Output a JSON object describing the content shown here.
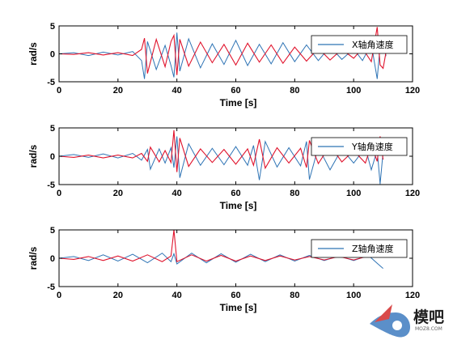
{
  "chart_data": [
    {
      "type": "line",
      "xlabel": "Time [s]",
      "ylabel": "rad/s",
      "xlim": [
        0,
        120
      ],
      "ylim": [
        -5,
        5
      ],
      "xticks": [
        0,
        20,
        40,
        60,
        80,
        100,
        120
      ],
      "yticks": [
        -5,
        0,
        5
      ],
      "grid": false,
      "legend_position": "top-right",
      "series": [
        {
          "name": "X轴角速度",
          "color": "#2f74b5",
          "x": [
            0,
            5,
            10,
            15,
            20,
            25,
            28,
            29,
            30,
            33,
            36,
            38,
            39,
            40,
            41,
            44,
            48,
            52,
            56,
            60,
            64,
            68,
            72,
            76,
            80,
            84,
            88,
            92,
            96,
            100,
            103,
            106,
            108,
            109,
            110,
            111
          ],
          "y": [
            0,
            0.2,
            -0.3,
            0.3,
            -0.2,
            0.4,
            -1.2,
            -4.5,
            2.2,
            -2.8,
            1.5,
            -2.1,
            -4.2,
            3.8,
            -3.1,
            2.7,
            -2.5,
            1.8,
            -1.9,
            2.4,
            -2.1,
            1.7,
            -1.8,
            2.0,
            -1.4,
            1.6,
            -1.2,
            1.3,
            -1.0,
            0.9,
            -1.2,
            1.8,
            -4.5,
            1.5,
            2.2,
            -0.4
          ]
        },
        {
          "name": "",
          "color": "#e0142d",
          "x": [
            0,
            5,
            10,
            15,
            20,
            25,
            28,
            29,
            30,
            33,
            36,
            38,
            39,
            40,
            41,
            44,
            48,
            52,
            56,
            60,
            64,
            68,
            72,
            76,
            80,
            84,
            88,
            92,
            96,
            100,
            103,
            106,
            108,
            109,
            110,
            111
          ],
          "y": [
            0,
            -0.1,
            0.2,
            -0.2,
            0.2,
            -0.3,
            0.8,
            2.8,
            -3.5,
            2.6,
            -2.3,
            2.2,
            3.3,
            -3.8,
            2.6,
            -2.2,
            2.1,
            -1.6,
            1.7,
            -2.0,
            1.9,
            -1.5,
            1.6,
            -1.7,
            1.2,
            -1.3,
            1.0,
            -1.1,
            0.8,
            -0.8,
            1.0,
            -1.4,
            4.8,
            -2.0,
            -2.6,
            0.3
          ]
        }
      ]
    },
    {
      "type": "line",
      "xlabel": "Time [s]",
      "ylabel": "rad/s",
      "xlim": [
        0,
        120
      ],
      "ylim": [
        -5,
        5
      ],
      "xticks": [
        0,
        20,
        40,
        60,
        80,
        100,
        120
      ],
      "yticks": [
        -5,
        0,
        5
      ],
      "grid": false,
      "legend_position": "top-right",
      "series": [
        {
          "name": "Y轴角速度",
          "color": "#2f74b5",
          "x": [
            0,
            5,
            10,
            15,
            20,
            25,
            28,
            30,
            31,
            34,
            36,
            38,
            39,
            40,
            41,
            44,
            48,
            52,
            56,
            60,
            64,
            66,
            68,
            70,
            74,
            78,
            82,
            84,
            85,
            88,
            92,
            96,
            100,
            104,
            106,
            108,
            109,
            110
          ],
          "y": [
            0,
            0.3,
            -0.2,
            0.4,
            -0.3,
            0.5,
            -0.7,
            1.2,
            -2.3,
            1.3,
            -1.2,
            1.5,
            -2.0,
            3.5,
            -3.8,
            2.2,
            -1.6,
            1.4,
            -1.5,
            1.7,
            -1.6,
            1.9,
            -4.2,
            2.6,
            -1.9,
            1.5,
            -1.7,
            2.6,
            -4.1,
            1.6,
            -2.4,
            1.3,
            -1.2,
            1.5,
            -2.4,
            1.1,
            -4.9,
            0.8
          ]
        },
        {
          "name": "",
          "color": "#e0142d",
          "x": [
            0,
            5,
            10,
            15,
            20,
            25,
            28,
            30,
            31,
            34,
            36,
            38,
            39,
            40,
            41,
            44,
            48,
            52,
            56,
            60,
            64,
            66,
            68,
            70,
            74,
            78,
            82,
            84,
            85,
            88,
            92,
            96,
            100,
            104,
            106,
            108,
            109,
            110
          ],
          "y": [
            0,
            -0.2,
            0.2,
            -0.3,
            0.2,
            -0.3,
            0.5,
            -0.9,
            1.6,
            -1.0,
            1.0,
            -1.1,
            4.6,
            -2.8,
            3.2,
            -1.8,
            1.3,
            -1.1,
            1.2,
            -1.4,
            1.3,
            -1.6,
            3.0,
            -2.1,
            1.5,
            -1.2,
            1.4,
            -2.0,
            2.8,
            -1.3,
            1.9,
            -1.0,
            1.0,
            -1.2,
            2.0,
            -0.9,
            3.5,
            -0.6
          ]
        }
      ]
    },
    {
      "type": "line",
      "xlabel": "Time [s]",
      "ylabel": "rad/s",
      "xlim": [
        0,
        120
      ],
      "ylim": [
        -5,
        5
      ],
      "xticks": [
        0,
        20,
        40,
        60,
        80,
        100,
        120
      ],
      "yticks": [
        -5,
        0,
        5
      ],
      "grid": false,
      "legend_position": "top-right",
      "series": [
        {
          "name": "Z轴角速度",
          "color": "#2f74b5",
          "x": [
            0,
            5,
            10,
            15,
            20,
            25,
            30,
            35,
            38,
            39,
            40,
            45,
            50,
            55,
            60,
            65,
            70,
            75,
            80,
            85,
            90,
            95,
            100,
            105,
            108,
            110
          ],
          "y": [
            0,
            0.3,
            -0.4,
            0.6,
            -0.5,
            0.7,
            -0.8,
            0.9,
            -0.6,
            0.8,
            -1.0,
            0.9,
            -0.8,
            0.8,
            -0.7,
            0.7,
            -0.6,
            0.6,
            -0.5,
            0.5,
            -0.4,
            0.4,
            -0.4,
            0.5,
            -0.9,
            -1.8
          ]
        },
        {
          "name": "",
          "color": "#e0142d",
          "x": [
            0,
            5,
            10,
            15,
            20,
            25,
            30,
            35,
            38,
            39,
            40,
            45,
            50,
            55,
            60,
            65,
            70,
            75,
            80,
            85,
            90,
            95,
            100,
            105,
            108,
            110
          ],
          "y": [
            0,
            -0.2,
            0.3,
            -0.4,
            0.4,
            -0.5,
            0.6,
            -0.6,
            0.4,
            5.0,
            -0.6,
            0.6,
            -0.5,
            0.5,
            -0.5,
            0.4,
            -0.4,
            0.4,
            -0.3,
            0.3,
            -0.3,
            0.3,
            -0.3,
            0.4,
            0.7,
            0.4
          ]
        }
      ]
    }
  ],
  "watermark": {
    "brand": "模吧",
    "site": "MOZ8.COM"
  }
}
